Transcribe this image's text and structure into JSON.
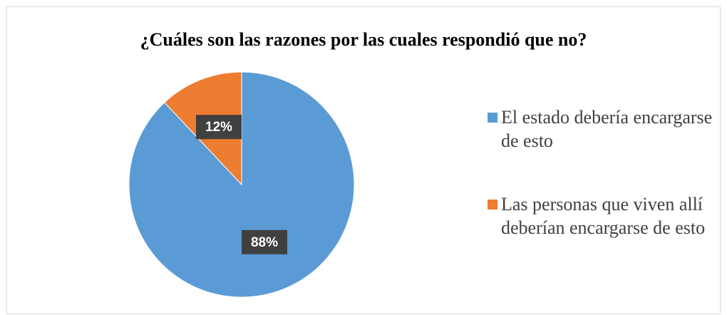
{
  "chart_data": {
    "type": "pie",
    "title": "¿Cuáles son las razones por las cuales respondió que no?",
    "categories": [
      "El estado debería encargarse de esto",
      "Las personas que viven allí deberían encargarse de esto"
    ],
    "values": [
      88,
      12
    ],
    "value_labels": [
      "88%",
      "12%"
    ],
    "colors": [
      "#5b9bd5",
      "#ed7d31"
    ],
    "legend": "right"
  }
}
